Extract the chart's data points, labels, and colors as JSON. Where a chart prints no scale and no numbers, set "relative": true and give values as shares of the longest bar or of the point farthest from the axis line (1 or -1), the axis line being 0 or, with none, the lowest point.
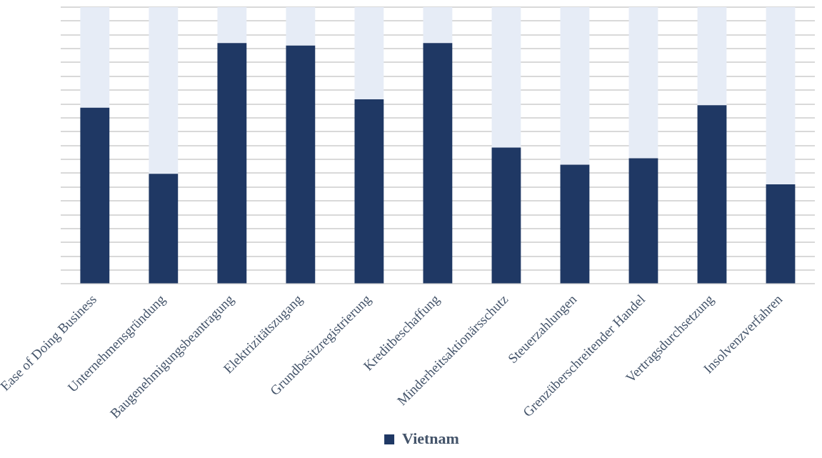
{
  "chart_data": {
    "type": "bar",
    "relative": true,
    "stacked": true,
    "grid": "y",
    "legend": "bottom",
    "categories": [
      "Ease of Doing Business",
      "Unternehmensgründung",
      "Baugenehmigungsbeantragung",
      "Elektrizitätszugang",
      "Grundbesitzregistrierung",
      "Kreditbeschaffung",
      "Minderheitsaktionärsschutz",
      "Steuerzahlungen",
      "Grenzüberschreitender Handel",
      "Vertragsdurchsetzung",
      "Insolvenzverfahren"
    ],
    "series": [
      {
        "name": "Vietnam",
        "color": "#1f3864",
        "values": [
          0.637,
          0.398,
          0.87,
          0.861,
          0.667,
          0.87,
          0.493,
          0.431,
          0.454,
          0.646,
          0.36
        ]
      },
      {
        "color": "#e6ecf6",
        "values": [
          0.363,
          0.602,
          0.13,
          0.139,
          0.333,
          0.13,
          0.507,
          0.569,
          0.546,
          0.354,
          0.64
        ]
      }
    ]
  }
}
